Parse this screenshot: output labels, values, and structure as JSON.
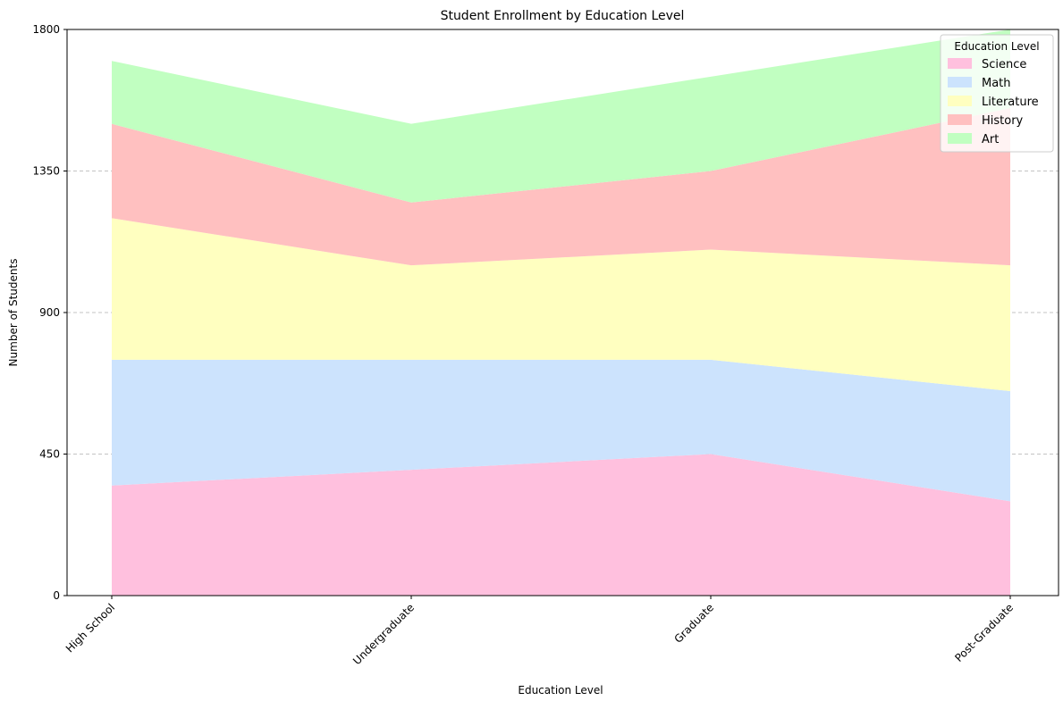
{
  "chart_data": {
    "type": "area",
    "stacked": true,
    "title": "Student Enrollment by Education Level",
    "xlabel": "Education Level",
    "ylabel": "Number of Students",
    "categories": [
      "High School",
      "Undergraduate",
      "Graduate",
      "Post-Graduate"
    ],
    "ylim": [
      0,
      1800
    ],
    "yticks": [
      0,
      450,
      900,
      1350,
      1800
    ],
    "grid": "y-dashed",
    "legend_title": "Education Level",
    "legend_position": "top-right",
    "series": [
      {
        "name": "Science",
        "color": "#ffc0de",
        "values": [
          350,
          400,
          450,
          300
        ]
      },
      {
        "name": "Math",
        "color": "#cce3fd",
        "values": [
          400,
          350,
          300,
          350
        ]
      },
      {
        "name": "Literature",
        "color": "#ffffc0",
        "values": [
          450,
          300,
          350,
          400
        ]
      },
      {
        "name": "History",
        "color": "#ffc0c0",
        "values": [
          300,
          200,
          250,
          500
        ]
      },
      {
        "name": "Art",
        "color": "#c1ffc1",
        "values": [
          200,
          250,
          300,
          250
        ]
      }
    ]
  }
}
